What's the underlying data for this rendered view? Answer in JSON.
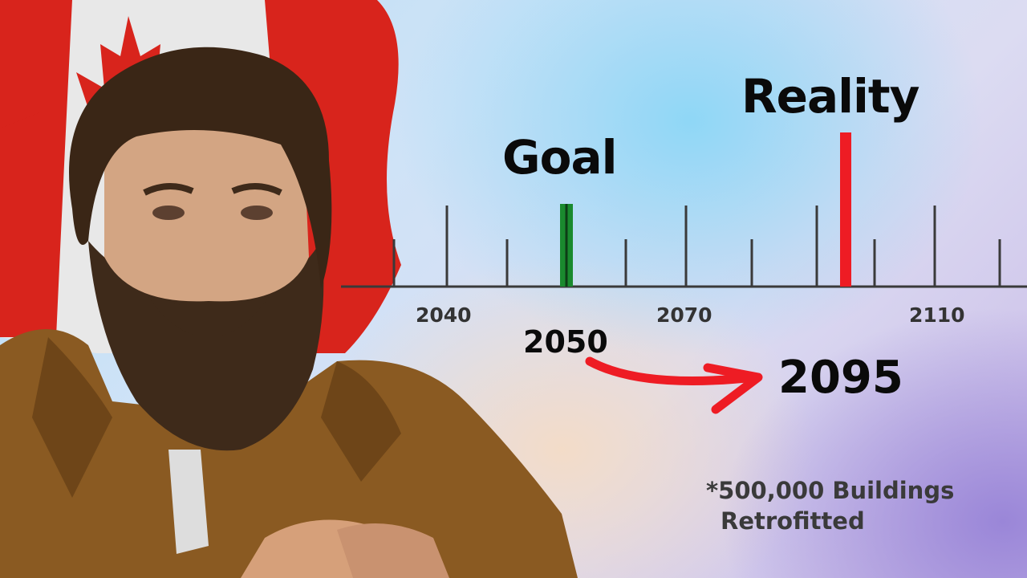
{
  "timeline": {
    "goal_label": "Goal",
    "reality_label": "Reality",
    "goal_color": "#1a8a2e",
    "reality_color": "#ee1c24",
    "tick_labels": [
      "2040",
      "2070",
      "2110"
    ],
    "from_year": "2050",
    "to_year": "2095",
    "arrow_color": "#ee1c24"
  },
  "footnote": {
    "line1": "*500,000 Buildings",
    "line2": "Retrofitted"
  },
  "photo": {
    "subject": "bearded-man-in-brown-jacket",
    "background_flag": "canada-flag"
  }
}
